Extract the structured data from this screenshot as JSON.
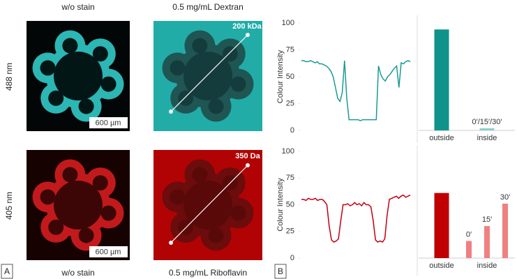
{
  "panel_a": {
    "label": "A",
    "top_headers": [
      "w/o stain",
      "0.5 mg/mL Dextran"
    ],
    "bottom_headers": [
      "w/o stain",
      "0.5 mg/mL Riboflavin"
    ],
    "row_labels": [
      "488 nm",
      "405 nm"
    ],
    "scale_bars": [
      "600 µm",
      "600 µm"
    ],
    "size_labels": [
      "200 kDa",
      "350 Da"
    ]
  },
  "panel_b": {
    "label": "B"
  },
  "chart_data": [
    {
      "type": "line",
      "ylabel": "Colour Intensity",
      "ylim": [
        0,
        100
      ],
      "yticks": [
        0,
        25,
        50,
        75,
        100
      ],
      "color": "#1a9a94",
      "values": [
        65,
        65,
        64,
        64,
        65,
        64,
        63,
        64,
        62,
        62,
        61,
        60,
        58,
        55,
        50,
        40,
        30,
        27,
        35,
        65,
        30,
        10,
        10,
        10,
        10,
        10,
        9,
        10,
        10,
        10,
        10,
        10,
        10,
        10,
        60,
        52,
        48,
        46,
        50,
        52,
        55,
        58,
        60,
        40,
        63,
        62,
        64,
        65,
        64
      ]
    },
    {
      "type": "bar",
      "ylim": [
        0,
        100
      ],
      "groups": [
        {
          "label": "outside",
          "bars": [
            {
              "value": 94,
              "color": "#10938a"
            }
          ]
        },
        {
          "label": "inside",
          "bars": [
            {
              "label": "0′/15′/30′",
              "value": 2,
              "color": "#8ecfcc"
            }
          ]
        }
      ]
    },
    {
      "type": "line",
      "ylabel": "Colour Intensity",
      "ylim": [
        0,
        100
      ],
      "yticks": [
        0,
        25,
        50,
        75,
        100
      ],
      "color": "#c0000f",
      "values": [
        55,
        55,
        54,
        56,
        55,
        55,
        56,
        54,
        55,
        55,
        53,
        50,
        30,
        17,
        15,
        16,
        18,
        35,
        50,
        50,
        51,
        49,
        50,
        52,
        50,
        51,
        49,
        52,
        50,
        50,
        48,
        35,
        17,
        15,
        16,
        15,
        18,
        40,
        55,
        56,
        57,
        58,
        56,
        58,
        59,
        57,
        58,
        59
      ]
    },
    {
      "type": "bar",
      "ylim": [
        0,
        100
      ],
      "groups": [
        {
          "label": "outside",
          "bars": [
            {
              "value": 61,
              "color": "#c00000"
            }
          ]
        },
        {
          "label": "inside",
          "bars": [
            {
              "label": "0′",
              "value": 16,
              "color": "#f08080"
            },
            {
              "label": "15′",
              "value": 30,
              "color": "#f08080"
            },
            {
              "label": "30′",
              "value": 51,
              "color": "#f08080"
            }
          ]
        }
      ]
    }
  ]
}
